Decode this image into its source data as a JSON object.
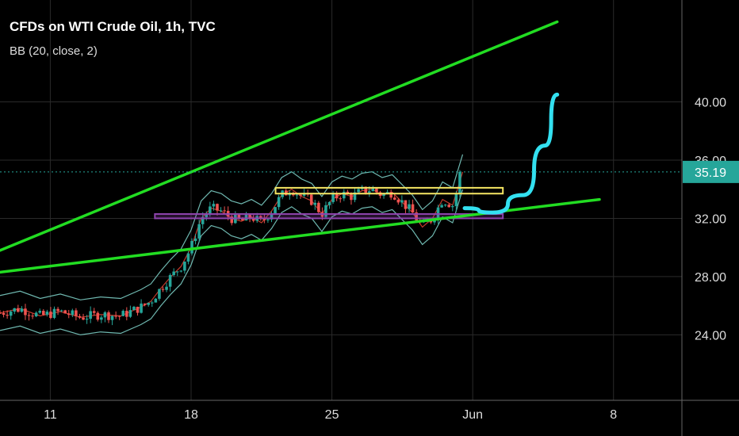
{
  "header": {
    "title": "CFDs on WTI Crude Oil, 1h, TVC",
    "indicator": "BB (20, close, 2)"
  },
  "chart_data": {
    "type": "candlestick",
    "grid": true,
    "ylim": [
      19.5,
      47
    ],
    "y_ticks": [
      {
        "value": 40,
        "label": "40.00"
      },
      {
        "value": 36,
        "label": "36.00"
      },
      {
        "value": 32,
        "label": "32.00"
      },
      {
        "value": 28,
        "label": "28.00"
      },
      {
        "value": 24,
        "label": "24.00"
      }
    ],
    "x_ticks": [
      {
        "day": 11,
        "label": "11"
      },
      {
        "day": 18,
        "label": "18"
      },
      {
        "day": 25,
        "label": "25"
      },
      {
        "day": 32,
        "label": "Jun"
      },
      {
        "day": 39,
        "label": "8"
      }
    ],
    "xlim": [
      8.5,
      42.4
    ],
    "last_price": {
      "value": 35.19,
      "label": "35.19"
    },
    "price_path": [
      [
        8.5,
        25.5
      ],
      [
        9.5,
        25.8
      ],
      [
        10.5,
        25.3
      ],
      [
        11.5,
        25.6
      ],
      [
        12.5,
        25.2
      ],
      [
        13.5,
        25.4
      ],
      [
        14.5,
        25.3
      ],
      [
        15.5,
        25.9
      ],
      [
        16.0,
        26.3
      ],
      [
        16.5,
        27.2
      ],
      [
        17.0,
        28.0
      ],
      [
        17.5,
        28.7
      ],
      [
        18.0,
        30.0
      ],
      [
        18.5,
        32.0
      ],
      [
        19.0,
        32.7
      ],
      [
        19.5,
        32.5
      ],
      [
        20.0,
        32.0
      ],
      [
        20.5,
        31.8
      ],
      [
        21.0,
        32.1
      ],
      [
        21.5,
        31.7
      ],
      [
        22.0,
        32.5
      ],
      [
        22.5,
        33.6
      ],
      [
        23.0,
        34.0
      ],
      [
        23.5,
        33.5
      ],
      [
        24.0,
        33.2
      ],
      [
        24.5,
        32.3
      ],
      [
        25.0,
        33.3
      ],
      [
        25.5,
        33.7
      ],
      [
        26.0,
        33.5
      ],
      [
        26.5,
        33.9
      ],
      [
        27.0,
        34.0
      ],
      [
        27.5,
        33.6
      ],
      [
        28.0,
        33.8
      ],
      [
        28.5,
        33.1
      ],
      [
        29.0,
        32.4
      ],
      [
        29.5,
        31.4
      ],
      [
        30.0,
        32.0
      ],
      [
        30.5,
        33.3
      ],
      [
        31.0,
        32.9
      ],
      [
        31.5,
        35.19
      ]
    ],
    "series": [
      {
        "name": "Upper Band",
        "offset": 1.2
      },
      {
        "name": "Lower Band",
        "offset": -1.2
      },
      {
        "name": "Basis",
        "offset": 0
      }
    ],
    "annotations": {
      "upper_trendline": {
        "from": [
          8.5,
          29.8
        ],
        "to": [
          36.2,
          45.5
        ],
        "color": "#22dd22"
      },
      "lower_trendline": {
        "from": [
          8.5,
          28.3
        ],
        "to": [
          38.3,
          33.3
        ],
        "color": "#22dd22"
      },
      "resistance_zone": {
        "x": [
          22.2,
          33.5
        ],
        "y": [
          33.7,
          34.1
        ],
        "color": "#f5e663"
      },
      "support_zone": {
        "x": [
          16.2,
          33.5
        ],
        "y": [
          32.0,
          32.3
        ],
        "color": "#8e44ad"
      },
      "projection_curve": {
        "points": [
          [
            31.6,
            32.7
          ],
          [
            33.0,
            32.4
          ],
          [
            34.5,
            33.6
          ],
          [
            35.6,
            37.0
          ],
          [
            36.2,
            40.5
          ]
        ],
        "color": "#33e0f0"
      }
    },
    "colors": {
      "up": "#26a69a",
      "down": "#ef5350",
      "bands": "#6fb8b0",
      "basis": "#c0392b",
      "grid": "#2a2a2a",
      "axis": "#666666",
      "price_badge": "#26a69a"
    }
  }
}
